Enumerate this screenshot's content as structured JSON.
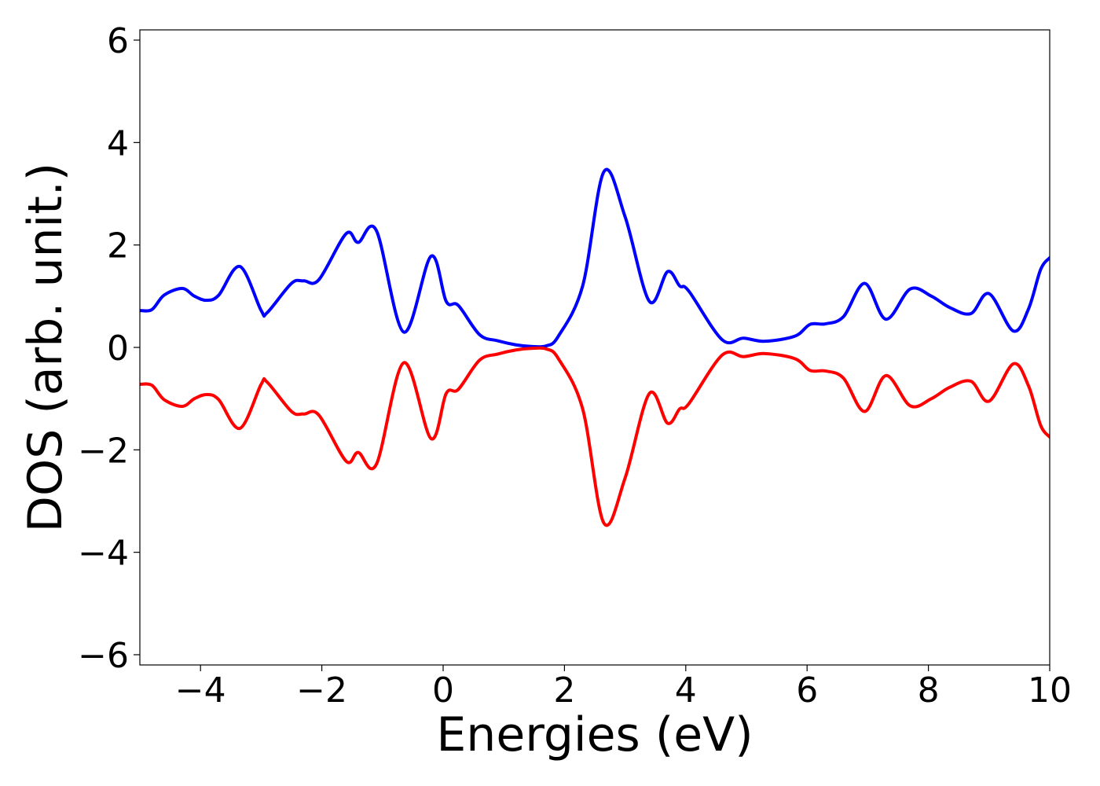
{
  "chart_data": {
    "type": "line",
    "title": "",
    "xlabel": "Energies (eV)",
    "ylabel": "DOS (arb. unit.)",
    "xlim": [
      -5,
      10
    ],
    "ylim": [
      -6.2,
      6.2
    ],
    "grid": false,
    "legend": "none",
    "x_ticks": [
      -4,
      -2,
      0,
      2,
      4,
      6,
      8,
      10
    ],
    "x_tick_labels": [
      "−4",
      "−2",
      "0",
      "2",
      "4",
      "6",
      "8",
      "10"
    ],
    "y_ticks": [
      -6,
      -4,
      -2,
      0,
      2,
      4,
      6
    ],
    "y_tick_labels": [
      "−6",
      "−4",
      "−2",
      "0",
      "2",
      "4",
      "6"
    ],
    "x": [
      -5.0,
      -4.8,
      -4.6,
      -4.3,
      -4.1,
      -3.9,
      -3.7,
      -3.35,
      -3.0,
      -2.9,
      -2.5,
      -2.3,
      -2.05,
      -1.6,
      -1.4,
      -1.1,
      -0.65,
      -0.2,
      0.05,
      0.25,
      0.6,
      0.9,
      1.2,
      1.45,
      1.7,
      1.9,
      2.3,
      2.65,
      3.0,
      3.4,
      3.7,
      3.9,
      4.05,
      4.6,
      4.95,
      5.3,
      5.8,
      6.05,
      6.3,
      6.6,
      6.95,
      7.3,
      7.7,
      8.05,
      8.35,
      8.7,
      9.0,
      9.4,
      9.65,
      9.85,
      10.0
    ],
    "series": [
      {
        "color": "#0000ff",
        "values": [
          0.72,
          0.74,
          1.02,
          1.15,
          1.0,
          0.92,
          1.02,
          1.58,
          0.72,
          0.68,
          1.25,
          1.3,
          1.32,
          2.22,
          2.05,
          2.28,
          0.3,
          1.78,
          0.9,
          0.82,
          0.25,
          0.13,
          0.05,
          0.02,
          0.03,
          0.22,
          1.2,
          3.43,
          2.55,
          0.9,
          1.48,
          1.2,
          1.1,
          0.15,
          0.18,
          0.12,
          0.22,
          0.45,
          0.46,
          0.6,
          1.25,
          0.55,
          1.14,
          1.0,
          0.78,
          0.66,
          1.05,
          0.32,
          0.75,
          1.52,
          1.75
        ]
      },
      {
        "color": "#ff0000",
        "values": [
          -0.72,
          -0.74,
          -1.02,
          -1.15,
          -1.0,
          -0.92,
          -1.02,
          -1.58,
          -0.72,
          -0.68,
          -1.25,
          -1.3,
          -1.32,
          -2.22,
          -2.05,
          -2.28,
          -0.3,
          -1.78,
          -0.9,
          -0.82,
          -0.25,
          -0.13,
          -0.05,
          -0.02,
          -0.03,
          -0.22,
          -1.2,
          -3.43,
          -2.55,
          -0.9,
          -1.48,
          -1.2,
          -1.1,
          -0.15,
          -0.18,
          -0.12,
          -0.22,
          -0.45,
          -0.46,
          -0.6,
          -1.25,
          -0.55,
          -1.14,
          -1.0,
          -0.78,
          -0.66,
          -1.05,
          -0.32,
          -0.75,
          -1.52,
          -1.75
        ]
      }
    ]
  }
}
